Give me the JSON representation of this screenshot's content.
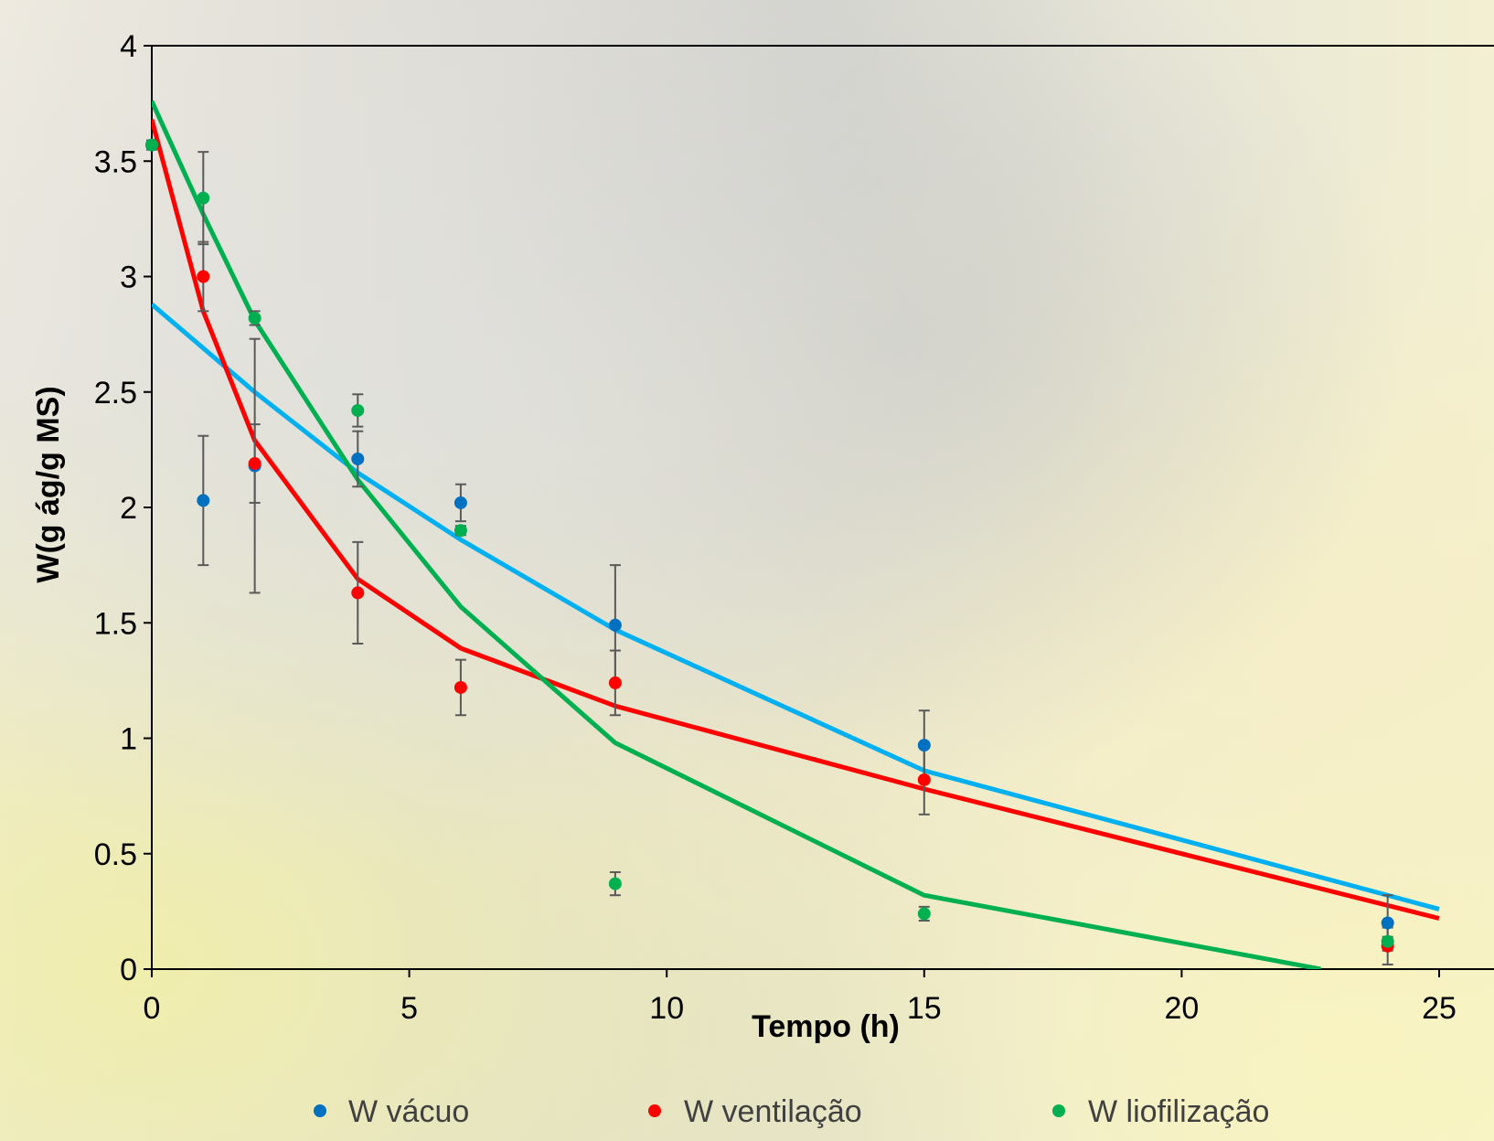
{
  "chart_data": {
    "type": "scatter",
    "title": "",
    "xlabel": "Tempo (h)",
    "ylabel": "W(g ág/g MS)",
    "xlim": [
      0,
      25
    ],
    "ylim": [
      0,
      4
    ],
    "x_ticks": [
      "0",
      "5",
      "10",
      "15",
      "20",
      "25"
    ],
    "y_ticks": [
      "0",
      "0.5",
      "1",
      "1.5",
      "2",
      "2.5",
      "3",
      "3.5",
      "4"
    ],
    "legend_position": "bottom",
    "grid": false,
    "series": [
      {
        "name": "W vácuo",
        "color": "#0070C0",
        "points": [
          {
            "x": 0,
            "y": 3.57,
            "err": 0.02
          },
          {
            "x": 1,
            "y": 2.03,
            "err": 0.28
          },
          {
            "x": 2,
            "y": 2.18,
            "err": 0.55
          },
          {
            "x": 4,
            "y": 2.21,
            "err": 0.12
          },
          {
            "x": 6,
            "y": 2.02,
            "err": 0.08
          },
          {
            "x": 9,
            "y": 1.49,
            "err": 0.26
          },
          {
            "x": 15,
            "y": 0.97,
            "err": 0.15
          },
          {
            "x": 24,
            "y": 0.2,
            "err": 0.12
          }
        ],
        "fit_color": "#00B0F0",
        "fit": [
          {
            "x": 0,
            "y": 2.88
          },
          {
            "x": 1,
            "y": 2.69
          },
          {
            "x": 2,
            "y": 2.5
          },
          {
            "x": 4,
            "y": 2.15
          },
          {
            "x": 6,
            "y": 1.86
          },
          {
            "x": 9,
            "y": 1.47
          },
          {
            "x": 15,
            "y": 0.86
          },
          {
            "x": 25,
            "y": 0.26
          }
        ]
      },
      {
        "name": "W ventilação",
        "color": "#FF0000",
        "points": [
          {
            "x": 1,
            "y": 3.0,
            "err": 0.15
          },
          {
            "x": 2,
            "y": 2.19,
            "err": 0.17
          },
          {
            "x": 4,
            "y": 1.63,
            "err": 0.22
          },
          {
            "x": 6,
            "y": 1.22,
            "err": 0.12
          },
          {
            "x": 9,
            "y": 1.24,
            "err": 0.14
          },
          {
            "x": 15,
            "y": 0.82,
            "err": 0.15
          },
          {
            "x": 24,
            "y": 0.1,
            "err": 0.08
          }
        ],
        "fit_color": "#FF0000",
        "fit": [
          {
            "x": 0,
            "y": 3.68
          },
          {
            "x": 1,
            "y": 2.85
          },
          {
            "x": 2,
            "y": 2.29
          },
          {
            "x": 4,
            "y": 1.69
          },
          {
            "x": 6,
            "y": 1.39
          },
          {
            "x": 9,
            "y": 1.14
          },
          {
            "x": 15,
            "y": 0.78
          },
          {
            "x": 25,
            "y": 0.22
          }
        ]
      },
      {
        "name": "W liofilização",
        "color": "#00B050",
        "points": [
          {
            "x": 0,
            "y": 3.57,
            "err": 0.02
          },
          {
            "x": 1,
            "y": 3.34,
            "err": 0.2
          },
          {
            "x": 2,
            "y": 2.82,
            "err": 0.03
          },
          {
            "x": 4,
            "y": 2.42,
            "err": 0.07
          },
          {
            "x": 6,
            "y": 1.9,
            "err": 0.02
          },
          {
            "x": 9,
            "y": 0.37,
            "err": 0.05
          },
          {
            "x": 15,
            "y": 0.24,
            "err": 0.03
          },
          {
            "x": 24,
            "y": 0.12,
            "err": 0.02
          }
        ],
        "fit_color": "#00B050",
        "fit": [
          {
            "x": 0,
            "y": 3.76
          },
          {
            "x": 1,
            "y": 3.27
          },
          {
            "x": 2,
            "y": 2.81
          },
          {
            "x": 4,
            "y": 2.12
          },
          {
            "x": 6,
            "y": 1.57
          },
          {
            "x": 9,
            "y": 0.98
          },
          {
            "x": 15,
            "y": 0.32
          },
          {
            "x": 22.7,
            "y": 0.0
          }
        ]
      }
    ]
  }
}
